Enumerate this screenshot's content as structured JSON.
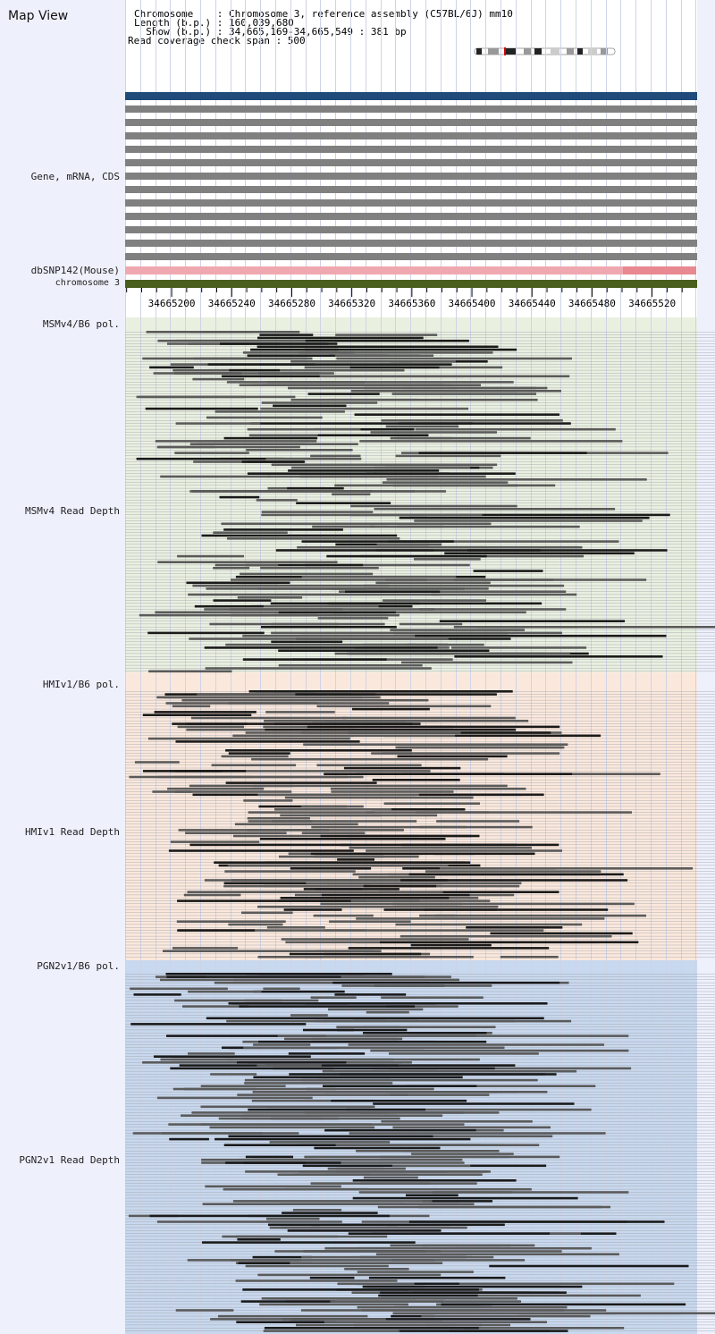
{
  "app": {
    "title": "Map View",
    "header": {
      "chromosome_line": "Chromosome    : Chromosome 3, reference assembly (C57BL/6J) mm10",
      "length_line": "Length (b.p.) : 160,039,680",
      "show_line": "  Show (b.p.) : 34,665,169-34,665,549 : 381 bp",
      "coverage_line": "Read coverage check span : 500"
    }
  },
  "tracks": {
    "gene_label": "Gene, mRNA, CDS",
    "dbsnp_label": "dbSNP142(Mouse)",
    "chromosome_label": "chromosome 3",
    "ticks": [
      "34665200",
      "34665240",
      "34665280",
      "34665320",
      "34665360",
      "34665400",
      "34665440",
      "34665480",
      "34665520"
    ],
    "msm_pol_label": "MSMv4/B6 pol.",
    "msm_depth_label": "MSMv4 Read Depth",
    "hmi_pol_label": "HMIv1/B6 pol.",
    "hmi_depth_label": "HMIv1 Read Depth",
    "pgn_pol_label": "PGN2v1/B6 pol.",
    "pgn_depth_label": "PGN2v1 Read Depth"
  },
  "colors": {
    "label_bg": "#eef0fc",
    "gene_bar": "#1f4a7a",
    "mrna_bar": "#808080",
    "dbsnp": "#f0a8b0",
    "dbsnp_dark": "#e88890",
    "chromosome": "#4a5e1e",
    "msm_bg": "#eaf0e0",
    "hmi_bg": "#fbe8dc",
    "pgn_bg": "#c8d8ee"
  }
}
